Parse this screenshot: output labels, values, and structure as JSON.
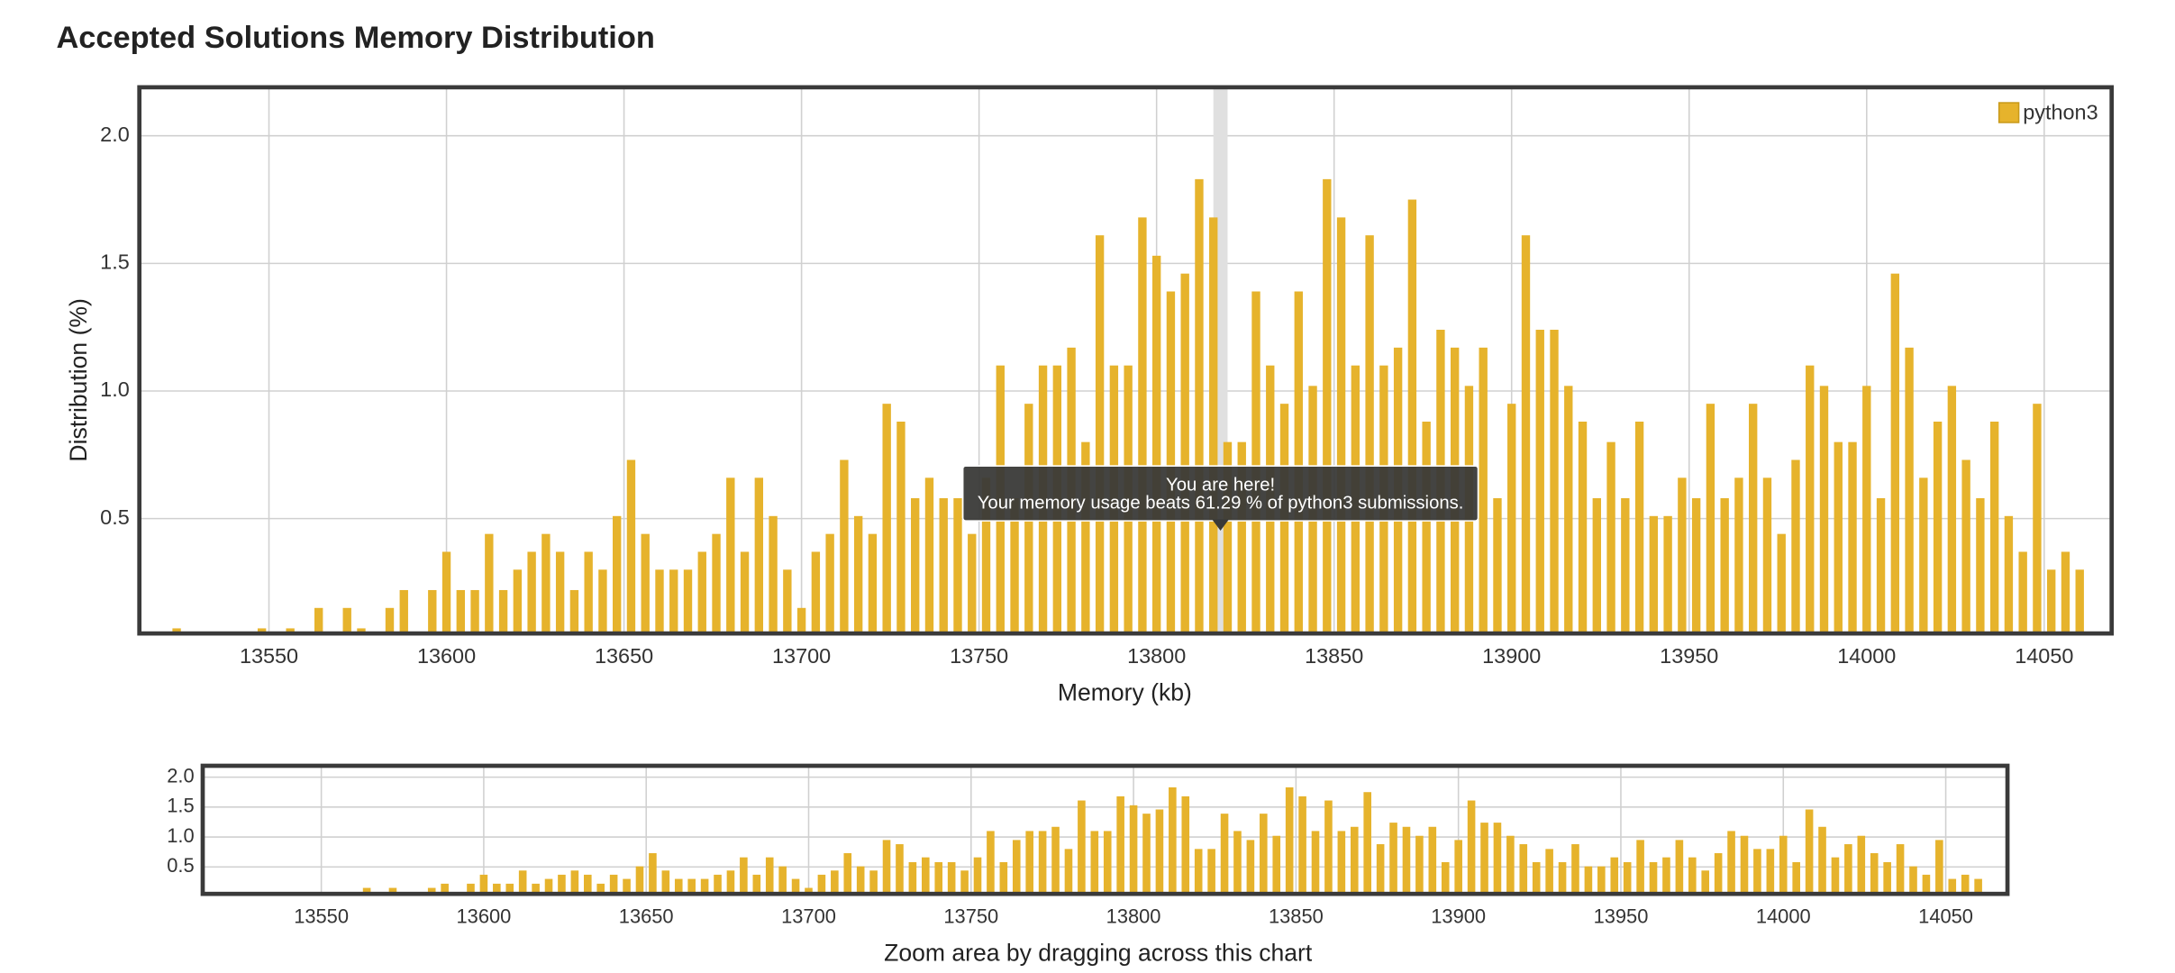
{
  "chart_data": {
    "type": "bar",
    "title": "Accepted Solutions Memory Distribution",
    "x_label": "Memory (kb)",
    "y_label": "Distribution (%)",
    "legend": "top-right",
    "grid": true,
    "xlim": [
      13513.5,
      14069
    ],
    "ylim": [
      0.05,
      2.19
    ],
    "xticks": [
      13550,
      13600,
      13650,
      13700,
      13750,
      13800,
      13850,
      13900,
      13950,
      14000,
      14050
    ],
    "yticks": [
      {
        "value": 2,
        "label": "2.0"
      },
      {
        "value": 1.5,
        "label": "1.5"
      },
      {
        "value": 1,
        "label": "1.0"
      },
      0.5
    ],
    "x": [
      13524,
      13548,
      13556,
      13564,
      13572,
      13576,
      13584,
      13588,
      13596,
      13600,
      13604,
      13608,
      13612,
      13616,
      13620,
      13624,
      13628,
      13632,
      13636,
      13640,
      13644,
      13648,
      13652,
      13656,
      13660,
      13664,
      13668,
      13672,
      13676,
      13680,
      13684,
      13688,
      13692,
      13696,
      13700,
      13704,
      13708,
      13712,
      13716,
      13720,
      13724,
      13728,
      13732,
      13736,
      13740,
      13744,
      13748,
      13752,
      13756,
      13760,
      13764,
      13768,
      13772,
      13776,
      13780,
      13784,
      13788,
      13792,
      13796,
      13800,
      13804,
      13808,
      13812,
      13816,
      13820,
      13824,
      13828,
      13832,
      13836,
      13840,
      13844,
      13848,
      13852,
      13856,
      13860,
      13864,
      13868,
      13872,
      13876,
      13880,
      13884,
      13888,
      13892,
      13896,
      13900,
      13904,
      13908,
      13912,
      13916,
      13920,
      13924,
      13928,
      13932,
      13936,
      13940,
      13944,
      13948,
      13952,
      13956,
      13960,
      13964,
      13968,
      13972,
      13976,
      13980,
      13984,
      13988,
      13992,
      13996,
      14000,
      14004,
      14008,
      14012,
      14016,
      14020,
      14024,
      14028,
      14032,
      14036,
      14040,
      14044,
      14048,
      14052,
      14056,
      14060
    ],
    "series": [
      {
        "name": "python3",
        "color": "#e6b32c",
        "values": [
          0.07,
          0.07,
          0.07,
          0.15,
          0.15,
          0.07,
          0.15,
          0.22,
          0.22,
          0.37,
          0.22,
          0.22,
          0.44,
          0.22,
          0.3,
          0.37,
          0.44,
          0.37,
          0.22,
          0.37,
          0.3,
          0.51,
          0.73,
          0.44,
          0.3,
          0.3,
          0.3,
          0.37,
          0.44,
          0.66,
          0.37,
          0.66,
          0.51,
          0.3,
          0.15,
          0.37,
          0.44,
          0.73,
          0.51,
          0.44,
          0.95,
          0.88,
          0.58,
          0.66,
          0.58,
          0.58,
          0.44,
          0.66,
          1.1,
          0.58,
          0.95,
          1.1,
          1.1,
          1.17,
          0.8,
          1.61,
          1.1,
          1.1,
          1.68,
          1.53,
          1.39,
          1.46,
          1.83,
          1.68,
          0.8,
          0.8,
          1.39,
          1.1,
          0.95,
          1.39,
          1.02,
          1.83,
          1.68,
          1.1,
          1.61,
          1.1,
          1.17,
          1.75,
          0.88,
          1.24,
          1.17,
          1.02,
          1.17,
          0.58,
          0.95,
          1.61,
          1.24,
          1.24,
          1.02,
          0.88,
          0.58,
          0.8,
          0.58,
          0.88,
          0.51,
          0.51,
          0.66,
          0.58,
          0.95,
          0.58,
          0.66,
          0.95,
          0.66,
          0.44,
          0.73,
          1.1,
          1.02,
          0.8,
          0.8,
          1.02,
          0.58,
          1.46,
          1.17,
          0.66,
          0.88,
          1.02,
          0.73,
          0.58,
          0.88,
          0.51,
          0.37,
          0.95,
          0.3,
          0.37,
          0.3
        ]
      }
    ],
    "highlight_x": 13818,
    "tooltip": [
      "You are here!",
      "Your memory usage beats 61.29 % of python3 submissions."
    ],
    "navigator": {
      "caption": "Zoom area by dragging across this chart"
    }
  }
}
